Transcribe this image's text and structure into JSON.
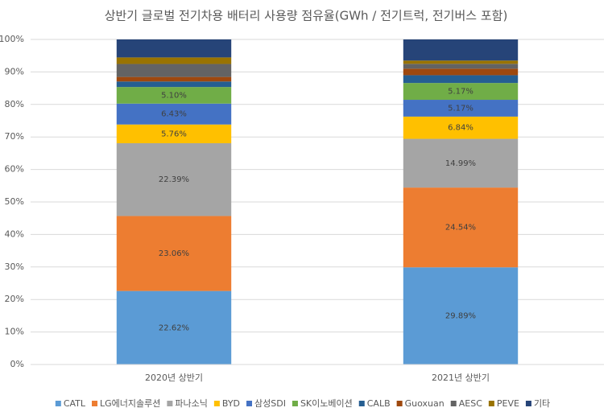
{
  "chart_data": {
    "type": "stacked_bar",
    "title": "상반기 글로벌 전기차용 배터리 사용량 점유율(GWh / 전기트럭, 전기버스 포함)",
    "categories": [
      "2020년 상반기",
      "2021년 상반기"
    ],
    "series": [
      {
        "name": "CATL",
        "color": "#5b9bd5",
        "values": [
          22.62,
          29.89
        ],
        "value_labels": [
          "22.62%",
          "29.89%"
        ]
      },
      {
        "name": "LG에너지솔루션",
        "color": "#ed7d31",
        "values": [
          23.06,
          24.54
        ],
        "value_labels": [
          "23.06%",
          "24.54%"
        ]
      },
      {
        "name": "파나소닉",
        "color": "#a5a5a5",
        "values": [
          22.39,
          14.99
        ],
        "value_labels": [
          "22.39%",
          "14.99%"
        ]
      },
      {
        "name": "BYD",
        "color": "#ffc000",
        "values": [
          5.76,
          6.84
        ],
        "value_labels": [
          "5.76%",
          "6.84%"
        ]
      },
      {
        "name": "삼성SDI",
        "color": "#4472c4",
        "values": [
          6.43,
          5.17
        ],
        "value_labels": [
          "6.43%",
          "5.17%"
        ]
      },
      {
        "name": "SK이노베이션",
        "color": "#70ad47",
        "values": [
          5.1,
          5.17
        ],
        "value_labels": [
          "5.10%",
          "5.17%"
        ]
      },
      {
        "name": "CALB",
        "color": "#255e91",
        "values": [
          1.7,
          2.4
        ]
      },
      {
        "name": "Guoxuan",
        "color": "#9e480e",
        "values": [
          1.4,
          2.0
        ]
      },
      {
        "name": "AESC",
        "color": "#636363",
        "values": [
          4.0,
          1.5
        ]
      },
      {
        "name": "PEVE",
        "color": "#997300",
        "values": [
          2.0,
          1.0
        ]
      },
      {
        "name": "기타",
        "color": "#264478",
        "values": [
          5.54,
          6.5
        ]
      }
    ],
    "ylim": [
      0,
      100
    ],
    "yticks": [
      {
        "value": 0,
        "label": "0%"
      },
      {
        "value": 10,
        "label": "10%"
      },
      {
        "value": 20,
        "label": "20%"
      },
      {
        "value": 30,
        "label": "30%"
      },
      {
        "value": 40,
        "label": "40%"
      },
      {
        "value": 50,
        "label": "50%"
      },
      {
        "value": 60,
        "label": "60%"
      },
      {
        "value": 70,
        "label": "70%"
      },
      {
        "value": 80,
        "label": "80%"
      },
      {
        "value": 90,
        "label": "90%"
      },
      {
        "value": 100,
        "label": "100%"
      }
    ],
    "grid": true,
    "legend": "bottom"
  }
}
